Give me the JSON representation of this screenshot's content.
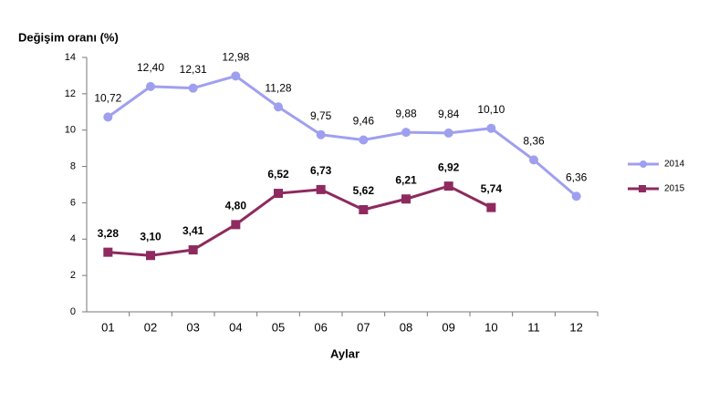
{
  "chart_data": {
    "type": "line",
    "y_label": "Değişim oranı (%)",
    "x_label": "Aylar",
    "categories": [
      "01",
      "02",
      "03",
      "04",
      "05",
      "06",
      "07",
      "08",
      "09",
      "10",
      "11",
      "12"
    ],
    "series": [
      {
        "name": "2014",
        "color": "#9f9ff0",
        "marker": "circle",
        "values": [
          10.72,
          12.4,
          12.31,
          12.98,
          11.28,
          9.75,
          9.46,
          9.88,
          9.84,
          10.1,
          8.36,
          6.36
        ],
        "value_labels": [
          "10,72",
          "12,40",
          "12,31",
          "12,98",
          "11,28",
          "9,75",
          "9,46",
          "9,88",
          "9,84",
          "10,10",
          "8,36",
          "6,36"
        ]
      },
      {
        "name": "2015",
        "color": "#8e2a5f",
        "marker": "square",
        "values": [
          3.28,
          3.1,
          3.41,
          4.8,
          6.52,
          6.73,
          5.62,
          6.21,
          6.92,
          5.74,
          null,
          null
        ],
        "value_labels": [
          "3,28",
          "3,10",
          "3,41",
          "4,80",
          "6,52",
          "6,73",
          "5,62",
          "6,21",
          "6,92",
          "5,74",
          null,
          null
        ]
      }
    ],
    "ylim": [
      0,
      14
    ],
    "yticks": [
      0,
      2,
      4,
      6,
      8,
      10,
      12,
      14
    ],
    "grid": false,
    "legend": "right"
  }
}
